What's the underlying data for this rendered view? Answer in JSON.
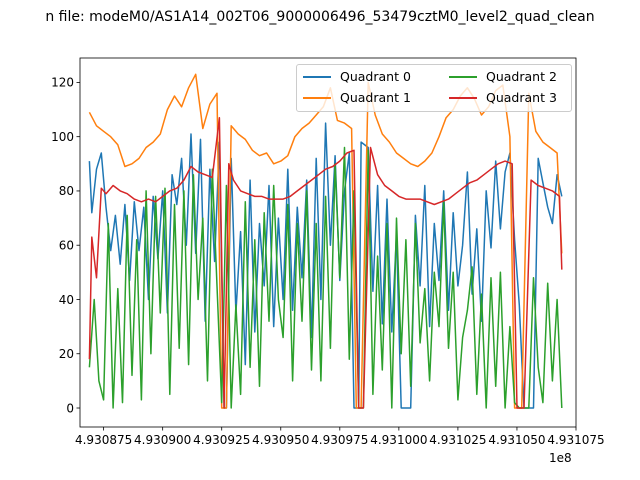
{
  "page": {
    "title": "n file: modeM0/AS1A14_002T06_9000006496_53479cztM0_level2_quad_clean",
    "x_offset_label": "1e8"
  },
  "chart_data": {
    "type": "line",
    "title": "n file: modeM0/AS1A14_002T06_9000006496_53479cztM0_level2_quad_clean",
    "xlabel": "",
    "ylabel": "",
    "x_offset": "1e8",
    "xlim": [
      493086500,
      493107500
    ],
    "ylim": [
      -7,
      129
    ],
    "x_ticks": [
      493087500,
      493090000,
      493092500,
      493095000,
      493097500,
      493100000,
      493102500,
      493105000,
      493107500
    ],
    "x_tick_labels": [
      "4.930875",
      "4.930900",
      "4.930925",
      "4.930950",
      "4.930975",
      "4.931000",
      "4.931025",
      "4.931050",
      "4.931075"
    ],
    "y_ticks": [
      0,
      20,
      40,
      60,
      80,
      100,
      120
    ],
    "y_tick_labels": [
      "0",
      "20",
      "40",
      "60",
      "80",
      "100",
      "120"
    ],
    "grid": false,
    "legend_position": "top-right",
    "series": [
      {
        "name": "Quadrant 0",
        "color": "#1f77b4",
        "x": [
          493086900,
          493087000,
          493087200,
          493087400,
          493087600,
          493087800,
          493088000,
          493088200,
          493088400,
          493088600,
          493088800,
          493089000,
          493089200,
          493089400,
          493089600,
          493089800,
          493090000,
          493090200,
          493090400,
          493090600,
          493090800,
          493091000,
          493091200,
          493091400,
          493091600,
          493091800,
          493092000,
          493092200,
          493092400,
          493092600,
          493092700,
          493092900,
          493093100,
          493093300,
          493093500,
          493093700,
          493093900,
          493094100,
          493094300,
          493094500,
          493094700,
          493094900,
          493095100,
          493095300,
          493095500,
          493095700,
          493095900,
          493096100,
          493096300,
          493096500,
          493096700,
          493096900,
          493097100,
          493097300,
          493097500,
          493097700,
          493097900,
          493098100,
          493098300,
          493098400,
          493098700,
          493098900,
          493099100,
          493099300,
          493099500,
          493099700,
          493099900,
          493100100,
          493100300,
          493100500,
          493100700,
          493100900,
          493101100,
          493101300,
          493101500,
          493101700,
          493101900,
          493102100,
          493102300,
          493102500,
          493102700,
          493102900,
          493103100,
          493103300,
          493103500,
          493103700,
          493103900,
          493104100,
          493104300,
          493104500,
          493104700,
          493104900,
          493105100,
          493105300,
          493105500,
          493105700,
          493105900,
          493106100,
          493106300,
          493106500,
          493106700,
          493106900
        ],
        "y": [
          91,
          72,
          88,
          94,
          74,
          58,
          71,
          53,
          75,
          47,
          76,
          58,
          74,
          40,
          78,
          55,
          80,
          35,
          86,
          75,
          92,
          60,
          101,
          57,
          99,
          32,
          88,
          54,
          98,
          0,
          0,
          92,
          35,
          65,
          16,
          84,
          28,
          68,
          45,
          82,
          30,
          70,
          40,
          88,
          36,
          74,
          48,
          84,
          26,
          92,
          40,
          105,
          60,
          93,
          47,
          80,
          94,
          0,
          0,
          98,
          96,
          43,
          82,
          31,
          77,
          28,
          64,
          0,
          0,
          0,
          71,
          45,
          82,
          30,
          68,
          47,
          80,
          36,
          72,
          45,
          60,
          87,
          42,
          66,
          32,
          80,
          59,
          91,
          66,
          87,
          94,
          62,
          38,
          0,
          0,
          0,
          92,
          83,
          74,
          68,
          86,
          78
        ]
      },
      {
        "name": "Quadrant 1",
        "color": "#ff7f0e",
        "x": [
          493086900,
          493087200,
          493087500,
          493087800,
          493088100,
          493088400,
          493088700,
          493089000,
          493089300,
          493089600,
          493089900,
          493090200,
          493090500,
          493090800,
          493091100,
          493091400,
          493091700,
          493092000,
          493092300,
          493092500,
          493092700,
          493092900,
          493093200,
          493093500,
          493093800,
          493094100,
          493094400,
          493094700,
          493095000,
          493095300,
          493095600,
          493095900,
          493096200,
          493096500,
          493096800,
          493097100,
          493097400,
          493097700,
          493098000,
          493098200,
          493098400,
          493098700,
          493099000,
          493099300,
          493099600,
          493099900,
          493100200,
          493100500,
          493100800,
          493101100,
          493101400,
          493101700,
          493102000,
          493102300,
          493102600,
          493102900,
          493103200,
          493103500,
          493103800,
          493104100,
          493104400,
          493104700,
          493104900,
          493105200,
          493105500,
          493105800,
          493106100,
          493106400,
          493106700,
          493106900
        ],
        "y": [
          109,
          104,
          102,
          100,
          97,
          89,
          90,
          92,
          96,
          98,
          101,
          110,
          115,
          111,
          118,
          123,
          103,
          112,
          116,
          0,
          0,
          104,
          101,
          99,
          95,
          93,
          94,
          90,
          91,
          93,
          100,
          103,
          105,
          108,
          111,
          118,
          106,
          105,
          103,
          0,
          0,
          120,
          108,
          101,
          98,
          94,
          92,
          90,
          89,
          91,
          94,
          100,
          107,
          110,
          115,
          118,
          114,
          108,
          111,
          117,
          119,
          100,
          0,
          0,
          116,
          102,
          98,
          96,
          94,
          57
        ]
      },
      {
        "name": "Quadrant 2",
        "color": "#2ca02c",
        "x": [
          493086900,
          493087100,
          493087300,
          493087500,
          493087700,
          493087900,
          493088100,
          493088300,
          493088500,
          493088700,
          493088900,
          493089100,
          493089300,
          493089500,
          493089700,
          493089900,
          493090100,
          493090300,
          493090500,
          493090700,
          493090900,
          493091100,
          493091300,
          493091500,
          493091700,
          493091900,
          493092100,
          493092300,
          493092500,
          493092700,
          493092900,
          493093100,
          493093300,
          493093500,
          493093700,
          493093900,
          493094100,
          493094300,
          493094500,
          493094700,
          493094900,
          493095100,
          493095300,
          493095500,
          493095700,
          493095900,
          493096100,
          493096300,
          493096500,
          493096700,
          493096900,
          493097100,
          493097300,
          493097500,
          493097700,
          493097900,
          493098100,
          493098300,
          493098500,
          493098700,
          493098900,
          493099100,
          493099300,
          493099500,
          493099700,
          493099900,
          493100100,
          493100300,
          493100500,
          493100700,
          493100900,
          493101100,
          493101300,
          493101500,
          493101700,
          493101900,
          493102100,
          493102300,
          493102500,
          493102700,
          493102900,
          493103100,
          493103300,
          493103500,
          493103700,
          493103900,
          493104100,
          493104300,
          493104500,
          493104700,
          493104900,
          493105100,
          493105300,
          493105500,
          493105700,
          493105900,
          493106100,
          493106300,
          493106500,
          493106700,
          493106900
        ],
        "y": [
          15,
          40,
          10,
          3,
          68,
          0,
          44,
          2,
          71,
          12,
          62,
          3,
          80,
          20,
          78,
          35,
          81,
          5,
          75,
          22,
          80,
          16,
          86,
          40,
          70,
          10,
          88,
          45,
          2,
          82,
          0,
          38,
          5,
          76,
          15,
          62,
          8,
          72,
          32,
          82,
          40,
          26,
          75,
          10,
          68,
          32,
          80,
          14,
          68,
          10,
          78,
          22,
          90,
          48,
          96,
          18,
          80,
          0,
          0,
          95,
          5,
          56,
          14,
          68,
          0,
          70,
          20,
          62,
          8,
          68,
          24,
          44,
          10,
          50,
          30,
          76,
          22,
          50,
          3,
          26,
          36,
          52,
          5,
          42,
          0,
          48,
          8,
          50,
          0,
          30,
          2,
          0,
          0,
          0,
          48,
          15,
          2,
          46,
          10,
          40,
          0
        ]
      },
      {
        "name": "Quadrant 3",
        "color": "#d62728",
        "x": [
          493086900,
          493087000,
          493087200,
          493087400,
          493087600,
          493087900,
          493088200,
          493088500,
          493088800,
          493089100,
          493089400,
          493089700,
          493090000,
          493090300,
          493090600,
          493090900,
          493091200,
          493091500,
          493091800,
          493092100,
          493092400,
          493092600,
          493092800,
          493093000,
          493093300,
          493093600,
          493093900,
          493094200,
          493094500,
          493094800,
          493095100,
          493095400,
          493095700,
          493096000,
          493096300,
          493096600,
          493096900,
          493097200,
          493097500,
          493097800,
          493098100,
          493098300,
          493098500,
          493098800,
          493099100,
          493099400,
          493099700,
          493100000,
          493100300,
          493100600,
          493100900,
          493101200,
          493101500,
          493101800,
          493102100,
          493102400,
          493102700,
          493103000,
          493103300,
          493103600,
          493103900,
          493104200,
          493104500,
          493104800,
          493105000,
          493105300,
          493105600,
          493105900,
          493106200,
          493106500,
          493106800,
          493106900
        ],
        "y": [
          18,
          63,
          48,
          81,
          79,
          82,
          80,
          79,
          77,
          76,
          77,
          76,
          78,
          80,
          81,
          84,
          89,
          87,
          86,
          85,
          107,
          0,
          90,
          84,
          80,
          79,
          78,
          78,
          77,
          77,
          77,
          78,
          80,
          82,
          84,
          86,
          88,
          89,
          91,
          94,
          95,
          0,
          0,
          96,
          86,
          82,
          80,
          78,
          77,
          77,
          77,
          76,
          75,
          76,
          77,
          79,
          81,
          83,
          84,
          86,
          88,
          90,
          91,
          90,
          0,
          0,
          84,
          82,
          81,
          80,
          78,
          51
        ]
      }
    ]
  }
}
